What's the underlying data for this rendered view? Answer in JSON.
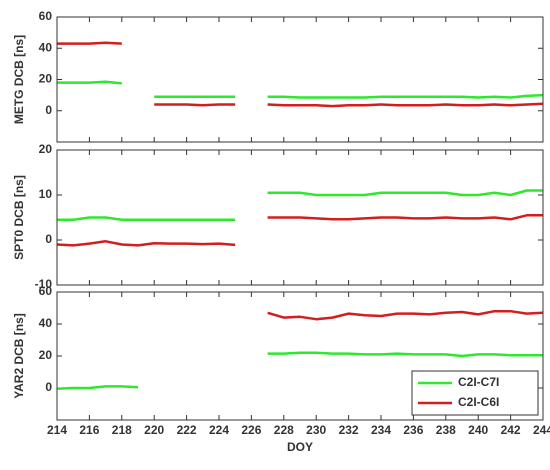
{
  "chart_data": [
    {
      "type": "line",
      "ylabel": "METG  DCB [ns]",
      "x": [
        214,
        215,
        216,
        217,
        218,
        219,
        220,
        221,
        222,
        223,
        224,
        225,
        226,
        227,
        228,
        229,
        230,
        231,
        232,
        233,
        234,
        235,
        236,
        237,
        238,
        239,
        240,
        241,
        242,
        243,
        244
      ],
      "xlim": [
        214,
        244
      ],
      "xticks": [
        214,
        216,
        218,
        220,
        222,
        224,
        226,
        228,
        230,
        232,
        234,
        236,
        238,
        240,
        242,
        244
      ],
      "ylim": [
        -20,
        60
      ],
      "yticks": [
        0,
        20,
        40,
        60
      ],
      "series": [
        {
          "name": "C2I-C7I",
          "color": "#2ee82e",
          "values": [
            18,
            18,
            18,
            18.5,
            17.5,
            null,
            9,
            9,
            9,
            9,
            9,
            9,
            null,
            9,
            9,
            8.5,
            8.5,
            8.5,
            8.5,
            8.5,
            9,
            9,
            9,
            9,
            9,
            9,
            8.5,
            9,
            8.5,
            9.5,
            10
          ]
        },
        {
          "name": "C2I-C6I",
          "color": "#d21e1e",
          "values": [
            43,
            43,
            43,
            43.5,
            43,
            null,
            4,
            4,
            4,
            3.5,
            4,
            4,
            null,
            4,
            3.5,
            3.5,
            3.5,
            3,
            3.5,
            3.5,
            4,
            3.5,
            3.5,
            3.5,
            4,
            3.5,
            3.5,
            4,
            3.5,
            4,
            4.5
          ]
        }
      ]
    },
    {
      "type": "line",
      "ylabel": "SPT0  DCB [ns]",
      "x": [
        214,
        215,
        216,
        217,
        218,
        219,
        220,
        221,
        222,
        223,
        224,
        225,
        226,
        227,
        228,
        229,
        230,
        231,
        232,
        233,
        234,
        235,
        236,
        237,
        238,
        239,
        240,
        241,
        242,
        243,
        244
      ],
      "xlim": [
        214,
        244
      ],
      "xticks": [
        214,
        216,
        218,
        220,
        222,
        224,
        226,
        228,
        230,
        232,
        234,
        236,
        238,
        240,
        242,
        244
      ],
      "ylim": [
        -10,
        20
      ],
      "yticks": [
        -10,
        0,
        10,
        20
      ],
      "series": [
        {
          "name": "C2I-C7I",
          "color": "#2ee82e",
          "values": [
            4.5,
            4.5,
            5,
            5,
            4.5,
            4.5,
            4.5,
            4.5,
            4.5,
            4.5,
            4.5,
            4.5,
            null,
            10.5,
            10.5,
            10.5,
            10,
            10,
            10,
            10,
            10.5,
            10.5,
            10.5,
            10.5,
            10.5,
            10,
            10,
            10.5,
            10,
            11,
            11
          ]
        },
        {
          "name": "C2I-C6I",
          "color": "#d21e1e",
          "values": [
            -1,
            -1.2,
            -0.8,
            -0.3,
            -1,
            -1.2,
            -0.7,
            -0.8,
            -0.8,
            -0.9,
            -0.8,
            -1.1,
            null,
            5,
            5,
            5,
            4.8,
            4.6,
            4.6,
            4.8,
            5,
            5,
            4.8,
            4.8,
            5,
            4.8,
            4.8,
            5,
            4.6,
            5.5,
            5.5
          ]
        }
      ]
    },
    {
      "type": "line",
      "ylabel": "YAR2  DCB [ns]",
      "xlabel": "DOY",
      "x": [
        214,
        215,
        216,
        217,
        218,
        219,
        220,
        221,
        222,
        223,
        224,
        225,
        226,
        227,
        228,
        229,
        230,
        231,
        232,
        233,
        234,
        235,
        236,
        237,
        238,
        239,
        240,
        241,
        242,
        243,
        244
      ],
      "xlim": [
        214,
        244
      ],
      "xticks": [
        214,
        216,
        218,
        220,
        222,
        224,
        226,
        228,
        230,
        232,
        234,
        236,
        238,
        240,
        242,
        244
      ],
      "ylim": [
        -20,
        60
      ],
      "yticks": [
        0,
        20,
        40,
        60
      ],
      "legend": "lower right",
      "series": [
        {
          "name": "C2I-C7I",
          "color": "#2ee82e",
          "values": [
            -0.5,
            0,
            0,
            1,
            1,
            0.5,
            null,
            null,
            null,
            null,
            null,
            null,
            null,
            21.5,
            21.5,
            22,
            22,
            21.5,
            21.5,
            21,
            21,
            21.5,
            21,
            21,
            21,
            20,
            21,
            21,
            20.5,
            20.5,
            20.5
          ]
        },
        {
          "name": "C2I-C6I",
          "color": "#d21e1e",
          "values": [
            null,
            null,
            null,
            null,
            null,
            null,
            null,
            null,
            null,
            null,
            null,
            null,
            null,
            47,
            44,
            44.5,
            43,
            44,
            46.5,
            45.5,
            45,
            46.5,
            46.5,
            46,
            47,
            47.5,
            46,
            48,
            48,
            46.5,
            47
          ]
        }
      ]
    }
  ]
}
